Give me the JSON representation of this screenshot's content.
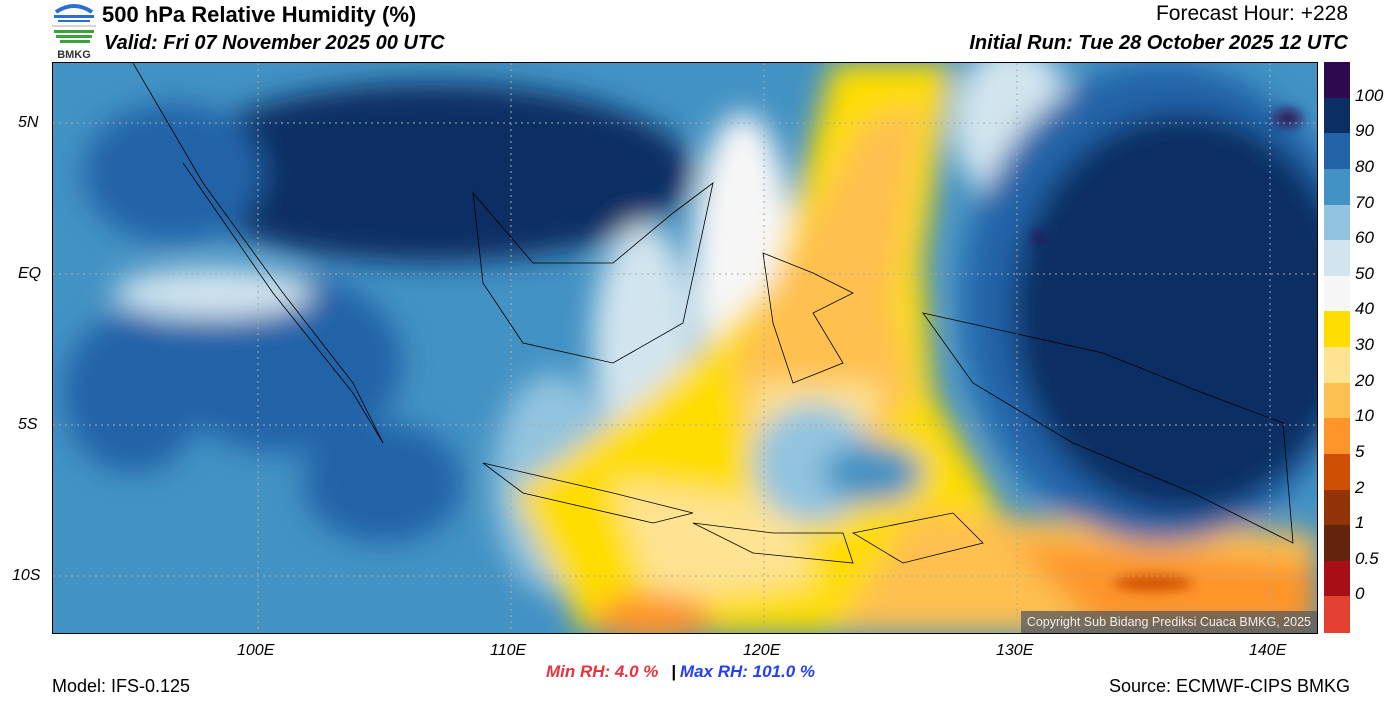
{
  "header": {
    "logo_text": "BMKG",
    "title": "500 hPa Relative Humidity (%)",
    "valid": "Valid: Fri 07 November 2025 00 UTC",
    "forecast_hour": "Forecast Hour: +228",
    "initial_run": "Initial Run: Tue 28 October 2025 12 UTC"
  },
  "map": {
    "lat_labels": [
      "5N",
      "EQ",
      "5S",
      "10S"
    ],
    "lon_labels": [
      "100E",
      "110E",
      "120E",
      "130E",
      "140E"
    ],
    "copyright": "Copyright Sub Bidang Prediksi Cuaca BMKG, 2025"
  },
  "colorbar": {
    "labels": [
      "100",
      "90",
      "80",
      "70",
      "60",
      "50",
      "40",
      "30",
      "20",
      "10",
      "5",
      "2",
      "1",
      "0.5",
      "0"
    ],
    "colors": [
      "#2d0a4e",
      "#0b2f63",
      "#2263a8",
      "#4392c4",
      "#92c4df",
      "#d2e5ef",
      "#f7f7f7",
      "#ffdd00",
      "#fee392",
      "#fec050",
      "#fd952a",
      "#cf4f04",
      "#923405",
      "#65250c",
      "#a50f15",
      "#e34232"
    ]
  },
  "footer": {
    "model": "Model: IFS-0.125",
    "min_rh": "Min RH:   4.0 %",
    "separator": "|",
    "max_rh": "Max RH: 101.0 %",
    "source": "Source: ECMWF-CIPS BMKG",
    "min_color": "#e8323c",
    "max_color": "#2640f0"
  }
}
